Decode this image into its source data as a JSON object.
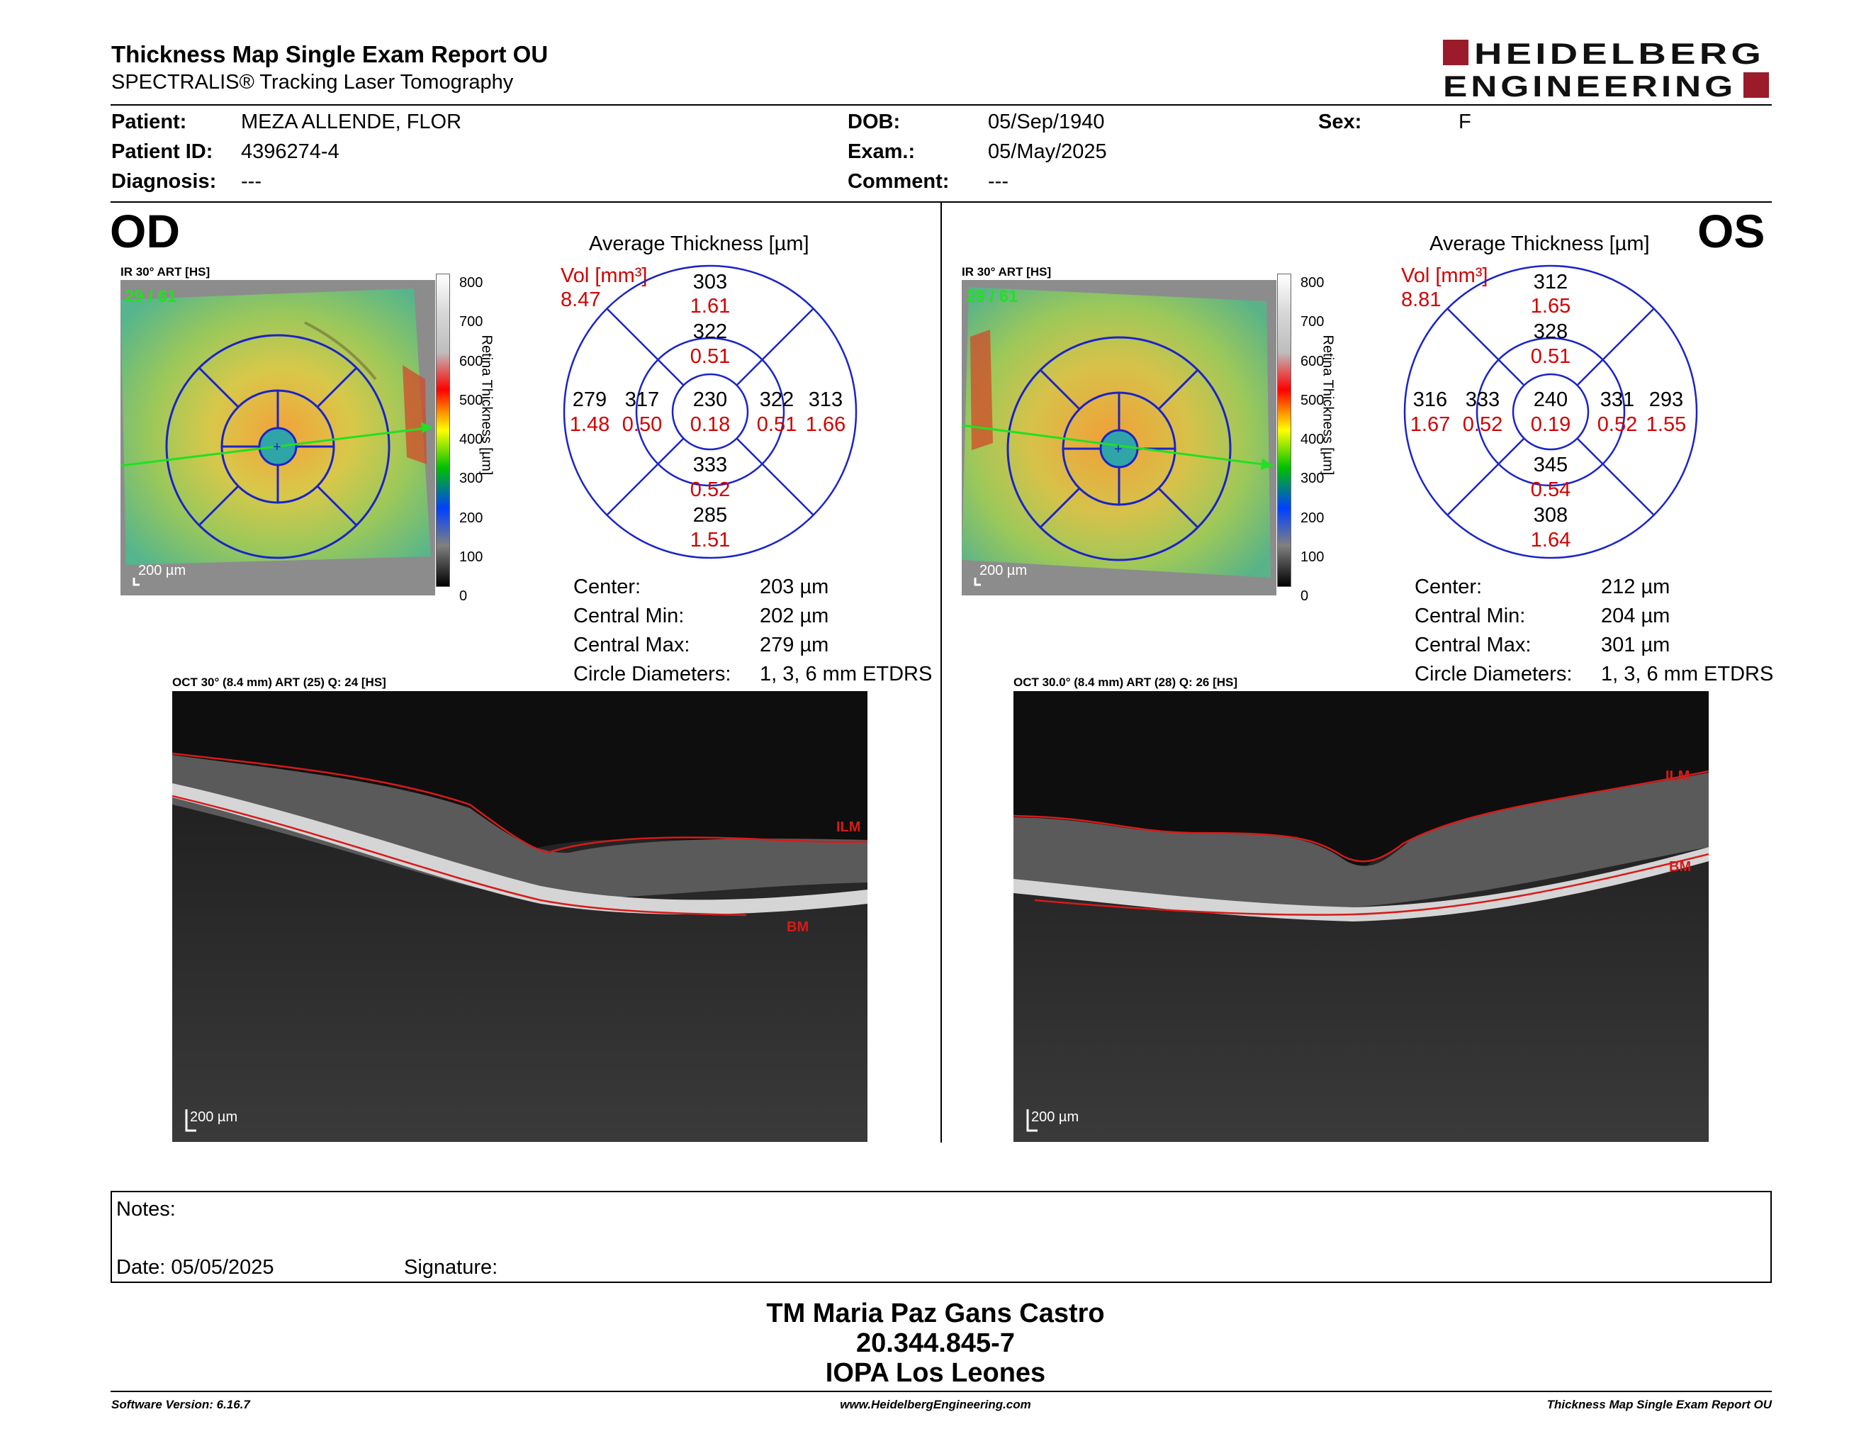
{
  "header": {
    "title": "Thickness Map Single Exam Report OU",
    "subtitle": "SPECTRALIS® Tracking Laser Tomography",
    "logo_top": "HEIDELBERG",
    "logo_bottom": "ENGINEERING",
    "brand_color": "#9b1b2a"
  },
  "patient": {
    "patient_label": "Patient:",
    "patient_value": "MEZA ALLENDE, FLOR",
    "id_label": "Patient ID:",
    "id_value": "4396274-4",
    "diag_label": "Diagnosis:",
    "diag_value": "---",
    "dob_label": "DOB:",
    "dob_value": "05/Sep/1940",
    "exam_label": "Exam.:",
    "exam_value": "05/May/2025",
    "comment_label": "Comment:",
    "comment_value": "---",
    "sex_label": "Sex:",
    "sex_value": "F"
  },
  "colorbar": {
    "ticks": [
      "800",
      "700",
      "600",
      "500",
      "400",
      "300",
      "200",
      "100",
      "0"
    ],
    "label": "Retina Thickness [µm]"
  },
  "od": {
    "eye": "OD",
    "ir_title": "IR 30° ART [HS]",
    "frames": "29 / 61",
    "scale": "200 µm",
    "grid_title": "Average Thickness [µm]",
    "vol_label": "Vol [mm³]",
    "vol_value": "8.47",
    "grid": {
      "outer_sup": "303",
      "outer_sup_vol": "1.61",
      "inner_sup": "322",
      "inner_sup_vol": "0.51",
      "outer_temp": "279",
      "outer_temp_vol": "1.48",
      "inner_temp": "317",
      "inner_temp_vol": "0.50",
      "center": "230",
      "center_vol": "0.18",
      "inner_nas": "322",
      "inner_nas_vol": "0.51",
      "outer_nas": "313",
      "outer_nas_vol": "1.66",
      "inner_inf": "333",
      "inner_inf_vol": "0.52",
      "outer_inf": "285",
      "outer_inf_vol": "1.51"
    },
    "stats": {
      "center_label": "Center:",
      "center_value": "203 µm",
      "min_label": "Central Min:",
      "min_value": "202 µm",
      "max_label": "Central Max:",
      "max_value": "279 µm",
      "circ_label": "Circle Diameters:",
      "circ_value": "1, 3, 6 mm ETDRS"
    },
    "oct_title": "OCT 30° (8.4 mm) ART (25) Q: 24 [HS]",
    "oct_scale": "200 µm",
    "ilm": "ILM",
    "bm": "BM"
  },
  "os": {
    "eye": "OS",
    "ir_title": "IR 30° ART [HS]",
    "frames": "29 / 61",
    "scale": "200 µm",
    "grid_title": "Average Thickness [µm]",
    "vol_label": "Vol [mm³]",
    "vol_value": "8.81",
    "grid": {
      "outer_sup": "312",
      "outer_sup_vol": "1.65",
      "inner_sup": "328",
      "inner_sup_vol": "0.51",
      "outer_temp": "316",
      "outer_temp_vol": "1.67",
      "inner_temp": "333",
      "inner_temp_vol": "0.52",
      "center": "240",
      "center_vol": "0.19",
      "inner_nas": "331",
      "inner_nas_vol": "0.52",
      "outer_nas": "293",
      "outer_nas_vol": "1.55",
      "inner_inf": "345",
      "inner_inf_vol": "0.54",
      "outer_inf": "308",
      "outer_inf_vol": "1.64"
    },
    "stats": {
      "center_label": "Center:",
      "center_value": "212 µm",
      "min_label": "Central Min:",
      "min_value": "204 µm",
      "max_label": "Central Max:",
      "max_value": "301 µm",
      "circ_label": "Circle Diameters:",
      "circ_value": "1, 3, 6 mm ETDRS"
    },
    "oct_title": "OCT 30.0° (8.4 mm) ART (28) Q: 26 [HS]",
    "oct_scale": "200 µm",
    "ilm": "ILM",
    "bm": "BM"
  },
  "notes": {
    "notes_label": "Notes:",
    "date_label": "Date: 05/05/2025",
    "signature_label": "Signature:"
  },
  "signatory": {
    "name": "TM Maria Paz Gans Castro",
    "rut": "20.344.845-7",
    "institution": "IOPA Los Leones"
  },
  "footer": {
    "software": "Software Version: 6.16.7",
    "website": "www.HeidelbergEngineering.com",
    "report": "Thickness Map Single Exam Report OU"
  }
}
